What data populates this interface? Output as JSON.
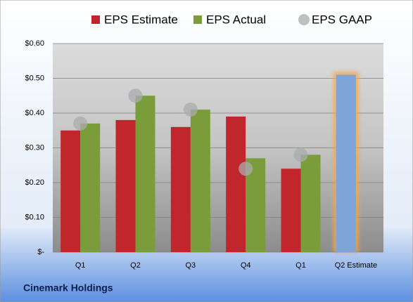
{
  "chart_data": {
    "type": "bar",
    "title": "Cinemark Holdings",
    "categories": [
      "Q1",
      "Q2",
      "Q3",
      "Q4",
      "Q1",
      "Q2 Estimate"
    ],
    "series": [
      {
        "name": "EPS Estimate",
        "color": "#c0262b",
        "values": [
          0.35,
          0.38,
          0.36,
          0.39,
          0.24,
          null
        ]
      },
      {
        "name": "EPS Actual",
        "color": "#7b9c3b",
        "values": [
          0.37,
          0.45,
          0.41,
          0.27,
          0.28,
          null
        ]
      },
      {
        "name": "EPS GAAP",
        "color": "#a9abae",
        "values": [
          0.37,
          0.45,
          0.41,
          0.24,
          0.28,
          null
        ]
      },
      {
        "color": "#7ea4d8",
        "values": [
          null,
          null,
          null,
          null,
          null,
          0.51
        ]
      }
    ],
    "ylim": [
      0,
      0.6
    ],
    "yticks": [
      {
        "value": 0,
        "label": "$-"
      },
      {
        "value": 0.1,
        "label": "$0.10"
      },
      {
        "value": 0.2,
        "label": "$0.20"
      },
      {
        "value": 0.3,
        "label": "$0.30"
      },
      {
        "value": 0.4,
        "label": "$0.40"
      },
      {
        "value": 0.5,
        "label": "$0.50"
      },
      {
        "value": 0.6,
        "label": "$0.60"
      }
    ],
    "grid": true
  }
}
